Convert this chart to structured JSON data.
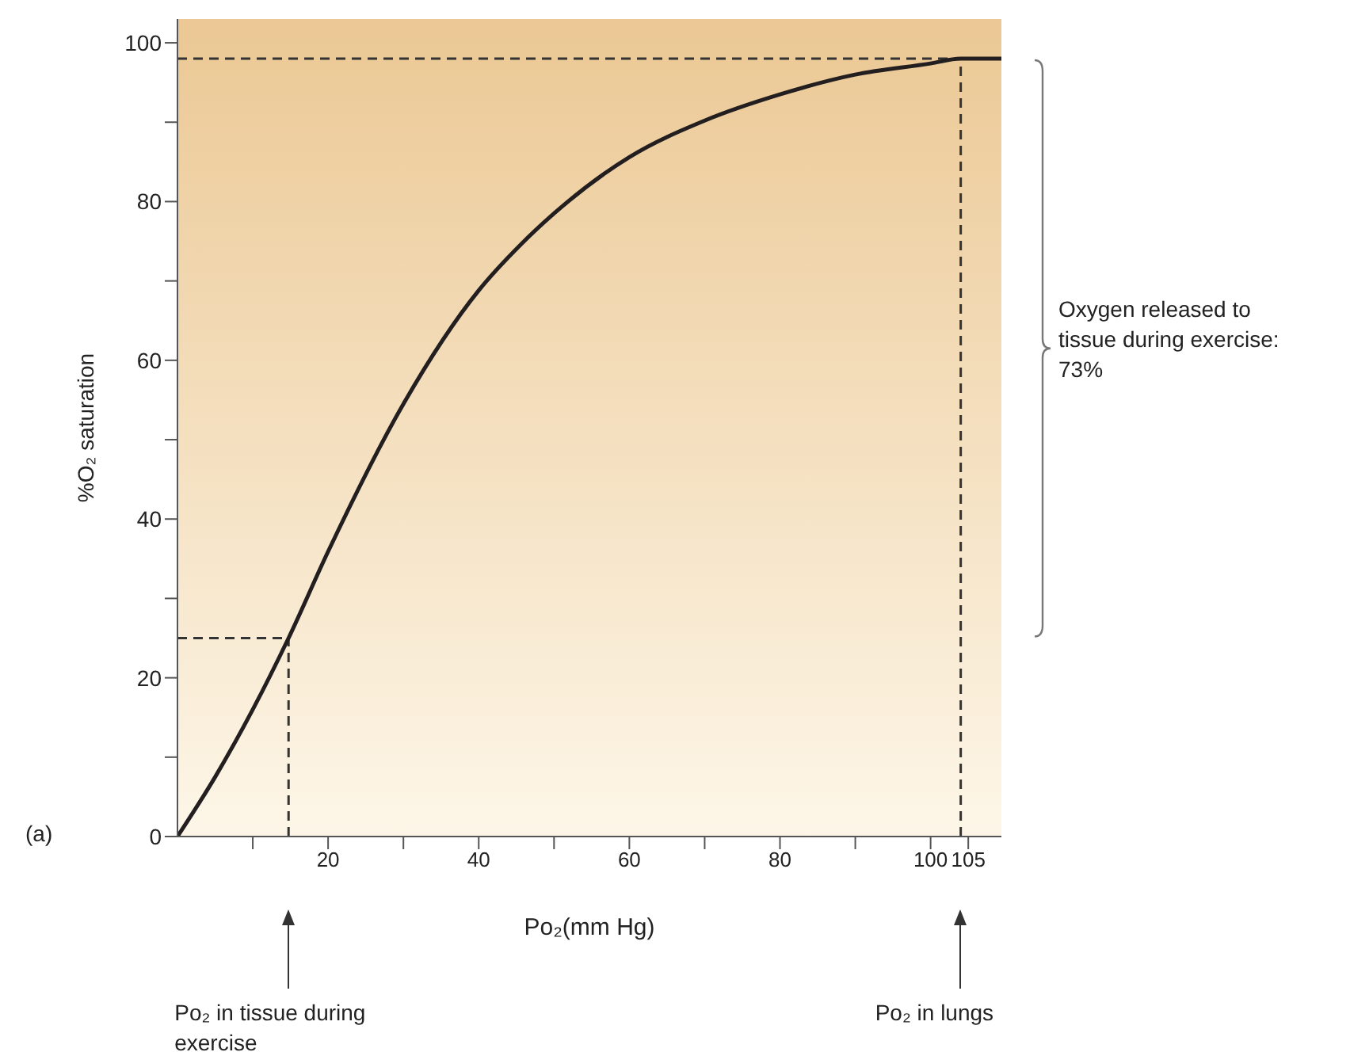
{
  "chart_data": {
    "type": "line",
    "xlabel": "Po₂(mm Hg)",
    "ylabel": "%O₂ saturation",
    "x": [
      0,
      5,
      10,
      14.75,
      20,
      30,
      40,
      45.5,
      50,
      60,
      70,
      80,
      90,
      100,
      104,
      109.4
    ],
    "series": [
      {
        "color": "#231f20",
        "values": [
          0,
          7.5,
          16,
          25,
          35.9,
          54.5,
          68.8,
          74.5,
          78.5,
          85.6,
          90.2,
          93.5,
          96,
          97.4,
          98,
          98
        ]
      }
    ],
    "xlim": [
      0,
      109.4
    ],
    "ylim": [
      0,
      103
    ],
    "xticks": [
      {
        "value": 10,
        "label": null
      },
      20,
      {
        "value": 30,
        "label": null
      },
      40,
      {
        "value": 50,
        "label": null
      },
      60,
      {
        "value": 70,
        "label": null
      },
      80,
      {
        "value": 90,
        "label": null
      },
      100,
      105
    ],
    "yticks": [
      0,
      {
        "value": 10,
        "label": null
      },
      20,
      {
        "value": 30,
        "label": null
      },
      40,
      {
        "value": 50,
        "label": null
      },
      60,
      {
        "value": 70,
        "label": null
      },
      80,
      {
        "value": 90,
        "label": null
      },
      100
    ],
    "ref_lines": [
      {
        "axis": "x",
        "value": 14.75,
        "color": "#333333",
        "line_style": "dashed"
      },
      {
        "axis": "x",
        "value": 104,
        "color": "#333333",
        "line_style": "dashed"
      },
      {
        "axis": "y",
        "value": 25,
        "color": "#333333",
        "line_style": "dashed"
      },
      {
        "axis": "y",
        "value": 98,
        "color": "#333333",
        "line_style": "dashed"
      }
    ],
    "annotations": [
      "(a)",
      "Oxygen released to tissue during exercise: 73%",
      "Po₂ in tissue during exercise",
      "Po₂ in lungs"
    ],
    "grid": false,
    "legend": false,
    "marker": "none",
    "line_style": "solid"
  }
}
